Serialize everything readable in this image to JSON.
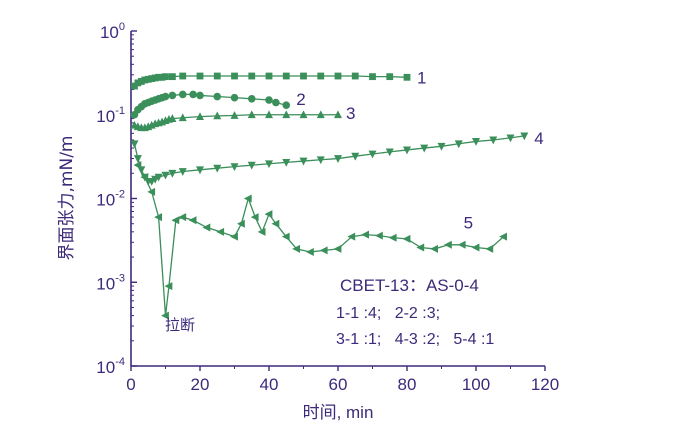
{
  "chart_data": {
    "type": "line",
    "title": "",
    "xlabel": "时间, min",
    "ylabel": "界面张力,mN/m",
    "xlim": [
      0,
      120
    ],
    "ylim": [
      0.0001,
      1
    ],
    "yscale": "log",
    "x_ticks": [
      "0",
      "20",
      "40",
      "60",
      "80",
      "100",
      "120"
    ],
    "y_ticks": [
      {
        "base": "10",
        "exp": "0"
      },
      {
        "base": "10",
        "exp": "-1"
      },
      {
        "base": "10",
        "exp": "-2"
      },
      {
        "base": "10",
        "exp": "-3"
      },
      {
        "base": "10",
        "exp": "-4"
      }
    ],
    "grid": false,
    "line_color": "#3a8f5a",
    "text_color": "#3d2a7a",
    "series": [
      {
        "name": "1",
        "marker": "square",
        "x": [
          1,
          2,
          3,
          4,
          5,
          6,
          7,
          8,
          9,
          10,
          12,
          15,
          20,
          25,
          30,
          35,
          40,
          45,
          50,
          55,
          60,
          65,
          70,
          75,
          80
        ],
        "y": [
          0.22,
          0.24,
          0.25,
          0.26,
          0.265,
          0.27,
          0.275,
          0.28,
          0.28,
          0.285,
          0.285,
          0.29,
          0.29,
          0.29,
          0.29,
          0.29,
          0.29,
          0.29,
          0.29,
          0.29,
          0.29,
          0.29,
          0.285,
          0.285,
          0.28
        ]
      },
      {
        "name": "2",
        "marker": "circle",
        "x": [
          1,
          2,
          3,
          4,
          5,
          6,
          7,
          8,
          9,
          10,
          12,
          15,
          18,
          20,
          25,
          30,
          35,
          40,
          42,
          45
        ],
        "y": [
          0.1,
          0.115,
          0.125,
          0.135,
          0.14,
          0.145,
          0.15,
          0.155,
          0.16,
          0.165,
          0.17,
          0.175,
          0.175,
          0.17,
          0.165,
          0.16,
          0.155,
          0.15,
          0.14,
          0.13
        ]
      },
      {
        "name": "3",
        "marker": "triangle-up",
        "x": [
          1,
          2,
          3,
          4,
          5,
          6,
          7,
          8,
          9,
          10,
          11,
          12,
          15,
          20,
          25,
          30,
          35,
          40,
          45,
          50,
          55,
          60
        ],
        "y": [
          0.075,
          0.072,
          0.07,
          0.07,
          0.072,
          0.075,
          0.078,
          0.08,
          0.082,
          0.085,
          0.088,
          0.09,
          0.092,
          0.095,
          0.097,
          0.098,
          0.1,
          0.1,
          0.1,
          0.1,
          0.1,
          0.1
        ]
      },
      {
        "name": "4",
        "marker": "triangle-down",
        "x": [
          1,
          2,
          3,
          4,
          5,
          6,
          7,
          8,
          10,
          12,
          15,
          20,
          25,
          30,
          35,
          40,
          45,
          50,
          55,
          60,
          65,
          70,
          75,
          80,
          85,
          90,
          95,
          100,
          105,
          110,
          114
        ],
        "y": [
          0.045,
          0.03,
          0.022,
          0.018,
          0.016,
          0.016,
          0.017,
          0.018,
          0.019,
          0.02,
          0.021,
          0.022,
          0.023,
          0.024,
          0.025,
          0.026,
          0.027,
          0.028,
          0.029,
          0.03,
          0.032,
          0.034,
          0.036,
          0.038,
          0.04,
          0.042,
          0.045,
          0.048,
          0.05,
          0.053,
          0.056
        ]
      },
      {
        "name": "5",
        "marker": "triangle-left",
        "x": [
          2,
          4,
          6,
          8,
          10,
          11,
          13,
          15,
          18,
          22,
          26,
          30,
          32,
          34,
          36,
          38,
          40,
          42,
          45,
          48,
          52,
          56,
          60,
          64,
          68,
          72,
          76,
          80,
          84,
          88,
          92,
          96,
          100,
          104,
          108
        ],
        "y": [
          0.025,
          0.018,
          0.012,
          0.006,
          0.0004,
          0.0009,
          0.0055,
          0.006,
          0.0055,
          0.0045,
          0.004,
          0.0035,
          0.005,
          0.01,
          0.006,
          0.004,
          0.0065,
          0.005,
          0.0035,
          0.0025,
          0.0023,
          0.0024,
          0.0025,
          0.0035,
          0.0037,
          0.0036,
          0.0034,
          0.0033,
          0.0026,
          0.0025,
          0.0028,
          0.0028,
          0.0026,
          0.0025,
          0.0035
        ]
      }
    ],
    "annotations": {
      "system": "CBET-13：AS-0-4",
      "ratios_line1": "1-1 :4;   2-2 :3;",
      "ratios_line2": "3-1 :1;   4-3 :2;   5-4 :1",
      "break_label": "拉断"
    }
  }
}
